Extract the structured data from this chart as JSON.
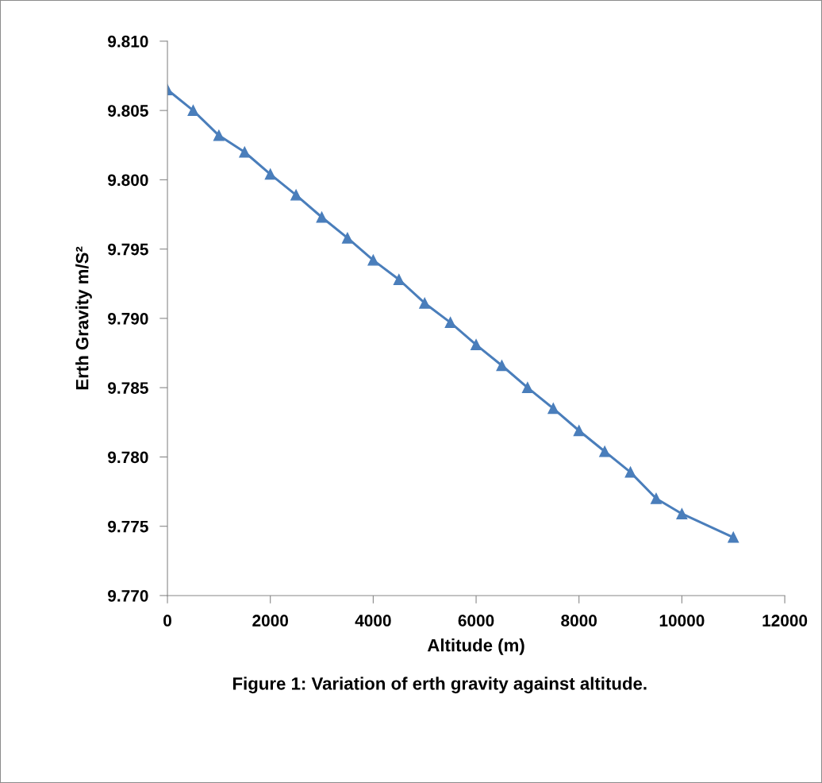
{
  "chart_data": {
    "type": "line",
    "xlabel": "Altitude (m)",
    "ylabel": "Erth Gravity m/S²",
    "annotations": [
      "Figure 1: Variation of erth gravity against altitude."
    ],
    "x": [
      0,
      500,
      1000,
      1500,
      2000,
      2500,
      3000,
      3500,
      4000,
      4500,
      5000,
      5500,
      6000,
      6500,
      7000,
      7500,
      8000,
      8500,
      9000,
      9500,
      10000,
      11000
    ],
    "series": [
      {
        "color": "#4a7ebb",
        "values": [
          9.8065,
          9.805,
          9.8032,
          9.802,
          9.8004,
          9.7989,
          9.7973,
          9.7958,
          9.7942,
          9.7928,
          9.7911,
          9.7897,
          9.7881,
          9.7866,
          9.785,
          9.7835,
          9.7819,
          9.7804,
          9.7789,
          9.777,
          9.7759,
          9.7742
        ]
      }
    ],
    "xlim": [
      0,
      12000
    ],
    "xticks": [
      0,
      2000,
      4000,
      6000,
      8000,
      10000,
      12000
    ],
    "ylim": [
      9.77,
      9.81
    ],
    "yticks": [
      {
        "value": 9.77,
        "label": "9.770"
      },
      {
        "value": 9.775,
        "label": "9.775"
      },
      {
        "value": 9.78,
        "label": "9.780"
      },
      {
        "value": 9.785,
        "label": "9.785"
      },
      {
        "value": 9.79,
        "label": "9.790"
      },
      {
        "value": 9.795,
        "label": "9.795"
      },
      {
        "value": 9.8,
        "label": "9.800"
      },
      {
        "value": 9.805,
        "label": "9.805"
      },
      {
        "value": 9.81,
        "label": "9.810"
      }
    ],
    "marker": "triangle",
    "line_style": "solid",
    "grid": false,
    "legend": false
  }
}
